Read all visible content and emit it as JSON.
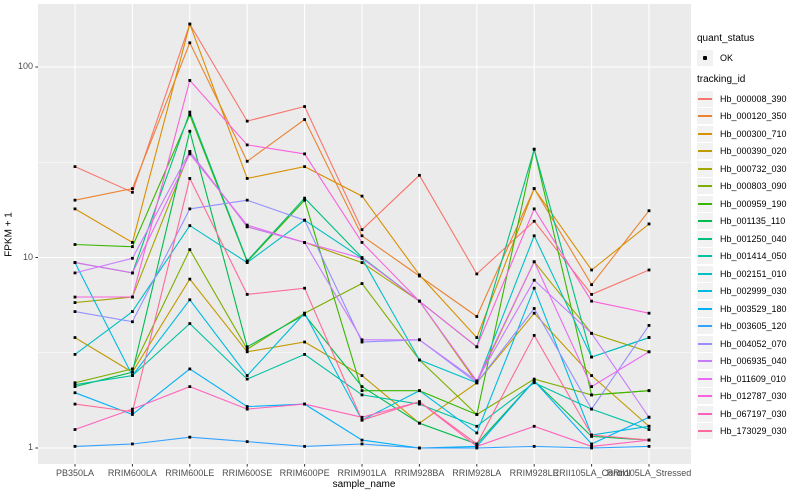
{
  "figure": {
    "background": "#FFFFFF",
    "panel_bg": "#EBEBEB",
    "grid_color": "#FFFFFF",
    "tick_mark_color": "#333333",
    "tick_label_color": "#4D4D4D",
    "point_color": "#000000"
  },
  "axes": {
    "ylabel": "FPKM + 1",
    "xlabel": "sample_name",
    "y_tick_labels": [
      "100",
      "10",
      "1"
    ],
    "y_tick_values": [
      100,
      10,
      1
    ]
  },
  "legend": {
    "quant_status_title": "quant_status",
    "quant_status_value": "OK",
    "tracking_title": "tracking_id"
  },
  "chart_data": {
    "type": "line",
    "y_scale": "log10",
    "ylim": [
      1,
      210
    ],
    "grid": true,
    "legend_position": "right",
    "xlabel": "sample_name",
    "ylabel": "FPKM + 1",
    "x": [
      "PB350LA",
      "RRIM600LA",
      "RRIM600LE",
      "RRIM600SE",
      "RRIM600PE",
      "RRIM901LA",
      "RRIM928BA",
      "RRIM928LA",
      "RRIM928LE",
      "RRII105LA_Control",
      "RRII105LA_Stressed"
    ],
    "quant_status": "OK",
    "series": [
      {
        "name": "Hb_000008_390",
        "color": "#F8766D",
        "values": [
          30,
          22,
          168,
          52,
          62,
          14,
          27,
          8.2,
          15.5,
          6.4,
          8.6
        ]
      },
      {
        "name": "Hb_000120_350",
        "color": "#EA8331",
        "values": [
          20,
          23,
          134,
          32,
          53,
          13,
          8.0,
          4.9,
          23,
          7.2,
          17.6
        ]
      },
      {
        "name": "Hb_000300_710",
        "color": "#D89000",
        "values": [
          18,
          12,
          168,
          26,
          30,
          21,
          8.1,
          3.8,
          23,
          8.6,
          15
        ]
      },
      {
        "name": "Hb_000390_020",
        "color": "#C09B00",
        "values": [
          3.8,
          2.5,
          7.7,
          3.2,
          3.6,
          2.4,
          1.35,
          2.2,
          5.1,
          2.4,
          1.3
        ]
      },
      {
        "name": "Hb_000732_030",
        "color": "#A3A500",
        "values": [
          5.8,
          6.2,
          36,
          14.5,
          12,
          9.4,
          5.9,
          2.2,
          9.5,
          4.0,
          3.2
        ]
      },
      {
        "name": "Hb_000803_090",
        "color": "#7CAE00",
        "values": [
          2.2,
          2.6,
          11,
          3.3,
          5.1,
          7.3,
          2.9,
          1.5,
          2.3,
          1.9,
          2.0
        ]
      },
      {
        "name": "Hb_000959_190",
        "color": "#39B600",
        "values": [
          11.7,
          11.4,
          56,
          9.5,
          20,
          2.0,
          2.0,
          1.5,
          37,
          1.9,
          2.0
        ]
      },
      {
        "name": "Hb_001135_110",
        "color": "#00BB4E",
        "values": [
          2.1,
          2.5,
          46,
          3.4,
          5.0,
          2.1,
          1.35,
          1.05,
          2.25,
          1.15,
          1.1
        ]
      },
      {
        "name": "Hb_001250_040",
        "color": "#00BF7D",
        "values": [
          9.4,
          8.3,
          58,
          9.6,
          20.5,
          10,
          5.9,
          3.4,
          37,
          3.0,
          3.8
        ]
      },
      {
        "name": "Hb_001414_050",
        "color": "#00C1A3",
        "values": [
          2.15,
          2.4,
          4.5,
          2.3,
          3.1,
          1.9,
          1.7,
          1.3,
          2.2,
          1.6,
          1.25
        ]
      },
      {
        "name": "Hb_002151_010",
        "color": "#00BFC4",
        "values": [
          3.1,
          5.2,
          14.7,
          9.4,
          15.7,
          9.9,
          2.9,
          2.2,
          13,
          3.0,
          3.8
        ]
      },
      {
        "name": "Hb_002999_030",
        "color": "#00BAE0",
        "values": [
          9.4,
          2.4,
          6.0,
          2.4,
          5.1,
          1.4,
          2.0,
          1.2,
          6.9,
          1.17,
          1.3
        ]
      },
      {
        "name": "Hb_003529_180",
        "color": "#00B0F6",
        "values": [
          1.95,
          1.5,
          2.6,
          1.65,
          1.7,
          1.1,
          1.0,
          1.02,
          2.25,
          1.05,
          1.45
        ]
      },
      {
        "name": "Hb_003605_120",
        "color": "#35A2FF",
        "values": [
          1.02,
          1.05,
          1.14,
          1.08,
          1.02,
          1.05,
          1.0,
          1.0,
          1.02,
          1.0,
          1.02
        ]
      },
      {
        "name": "Hb_004052_070",
        "color": "#9590FF",
        "values": [
          5.2,
          4.6,
          18,
          20,
          15.7,
          3.6,
          3.7,
          2.2,
          5.4,
          1.6,
          4.4
        ]
      },
      {
        "name": "Hb_006935_040",
        "color": "#C77CFF",
        "values": [
          8.3,
          9.9,
          36,
          14.5,
          12,
          3.7,
          3.7,
          2.25,
          7.6,
          4.0,
          1.45
        ]
      },
      {
        "name": "Hb_011609_010",
        "color": "#E76BF3",
        "values": [
          9.4,
          8.3,
          35,
          14.8,
          12,
          9.9,
          5.9,
          2.25,
          9.5,
          2.1,
          3.2
        ]
      },
      {
        "name": "Hb_012787_030",
        "color": "#FA62DB",
        "values": [
          6.2,
          6.2,
          85,
          39,
          35,
          12,
          5.9,
          3.4,
          18,
          5.9,
          5.1
        ]
      },
      {
        "name": "Hb_067197_030",
        "color": "#FF62BC",
        "values": [
          1.25,
          1.6,
          2.1,
          1.6,
          1.7,
          1.45,
          1.75,
          1.02,
          1.3,
          1.02,
          1.1
        ]
      },
      {
        "name": "Hb_173029_030",
        "color": "#FF6A98",
        "values": [
          1.7,
          1.55,
          26,
          6.4,
          6.9,
          1.4,
          1.75,
          1.05,
          3.9,
          1.17,
          1.1
        ]
      }
    ]
  }
}
